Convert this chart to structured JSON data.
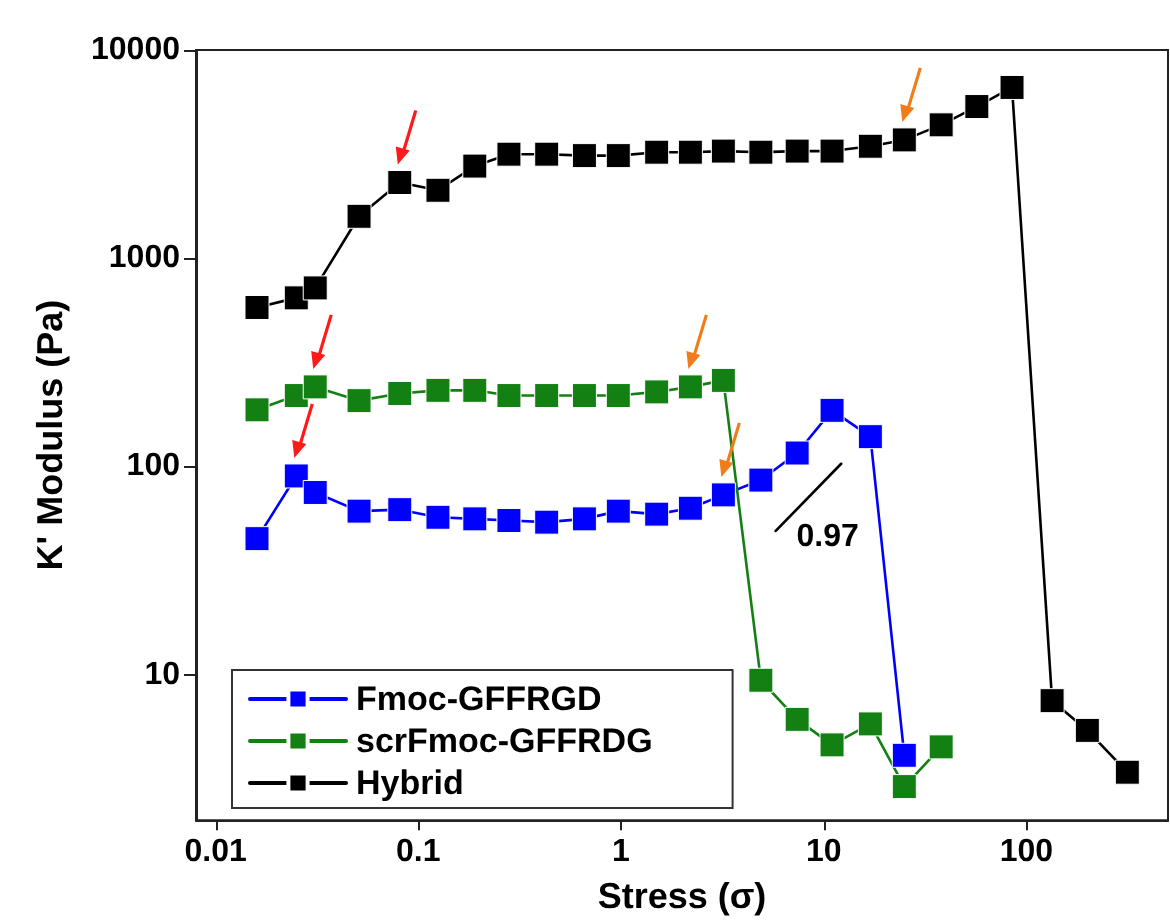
{
  "chart_data": {
    "type": "line",
    "xlabel": "Stress (σ)",
    "ylabel": "K' Modulus (Pa)",
    "log": "xy",
    "xlim": [
      0.008,
      500
    ],
    "xticks": [
      0.01,
      0.1,
      1,
      10,
      100
    ],
    "ylim": [
      2,
      10000
    ],
    "yticks": [
      10,
      100,
      1000,
      10000
    ],
    "grid": false,
    "legend": "bottom left",
    "marker": "square",
    "line_style": "solid",
    "annotations": [
      "0.97"
    ],
    "series": [
      {
        "name": "Fmoc-GFFRGD",
        "color": "#0000ff",
        "x": [
          0.016,
          0.025,
          0.031,
          0.051,
          0.081,
          0.125,
          0.19,
          0.28,
          0.43,
          0.66,
          0.97,
          1.5,
          2.2,
          3.2,
          4.9,
          7.4,
          11,
          17,
          25
        ],
        "values": [
          45,
          90,
          75,
          61,
          62,
          57,
          56,
          55,
          54,
          56,
          61,
          59,
          63,
          73,
          86,
          116,
          186,
          139,
          4.1
        ]
      },
      {
        "name": "scrFmoc-GFFRDG",
        "color": "#138013",
        "x": [
          0.016,
          0.025,
          0.031,
          0.051,
          0.081,
          0.125,
          0.19,
          0.28,
          0.43,
          0.66,
          0.97,
          1.5,
          2.2,
          3.2,
          4.9,
          7.4,
          11,
          17,
          25,
          38
        ],
        "values": [
          187,
          219,
          241,
          207,
          224,
          232,
          232,
          219,
          219,
          219,
          219,
          228,
          241,
          259,
          9.4,
          6.1,
          4.6,
          5.8,
          2.9,
          4.5
        ]
      },
      {
        "name": "Hybrid",
        "color": "#000000",
        "x": [
          0.016,
          0.025,
          0.031,
          0.051,
          0.081,
          0.125,
          0.19,
          0.28,
          0.43,
          0.66,
          0.97,
          1.5,
          2.2,
          3.2,
          4.9,
          7.4,
          11,
          17,
          25,
          38,
          57,
          85,
          134,
          200,
          315
        ],
        "values": [
          580,
          645,
          720,
          1590,
          2310,
          2120,
          2770,
          3160,
          3160,
          3110,
          3110,
          3230,
          3230,
          3270,
          3230,
          3270,
          3270,
          3450,
          3700,
          4370,
          5350,
          6610,
          7.5,
          5.4,
          3.4
        ]
      },
      {
        "type": "line",
        "color": "#000000",
        "marker": "none",
        "x": [
          5.8,
          12.2
        ],
        "values": [
          49,
          103
        ]
      }
    ]
  }
}
